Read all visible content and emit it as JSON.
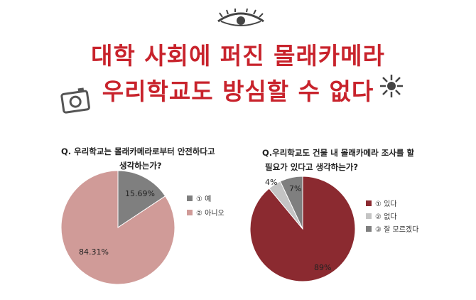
{
  "headline": {
    "line1": "대학 사회에 퍼진 몰래카메라",
    "line2": "우리학교도 방심할 수 없다"
  },
  "chart_data": [
    {
      "type": "pie",
      "title_line1": "Q. 우리학교는 몰래카메라로부터 안전하다고",
      "title_line2": "생각하는가?",
      "categories": [
        "① 예",
        "② 아니오"
      ],
      "values": [
        15.69,
        84.31
      ],
      "value_labels": [
        "15.69%",
        "84.31%"
      ],
      "colors": [
        "#7f7f7f",
        "#d09b98"
      ],
      "legend_position": "right"
    },
    {
      "type": "pie",
      "title_line1": "Q.우리학교도 건물 내 몰래카메라 조사를 할",
      "title_line2": "필요가 있다고 생각하는가?",
      "categories": [
        "① 있다",
        "② 없다",
        "③ 잘 모르겠다"
      ],
      "values": [
        89,
        4,
        7
      ],
      "value_labels": [
        "89%",
        "4%",
        "7%"
      ],
      "colors": [
        "#8b2a30",
        "#c4c4c4",
        "#7f7f7f"
      ],
      "legend_position": "right"
    }
  ]
}
